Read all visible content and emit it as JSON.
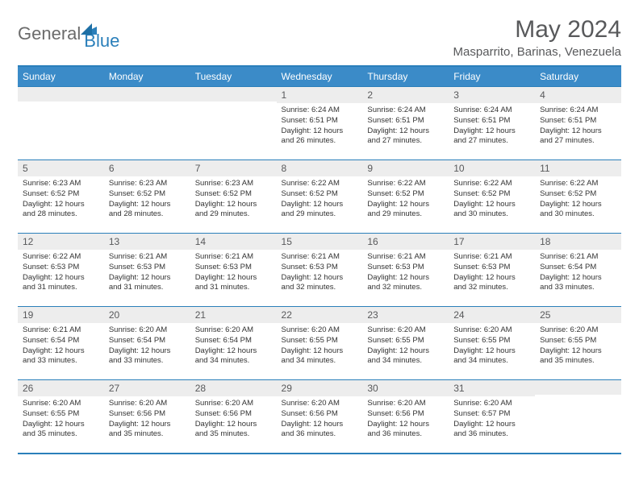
{
  "brand": {
    "text1": "General",
    "text2": "Blue",
    "text1_color": "#6b6b6b",
    "text2_color": "#2a7fba",
    "icon_color": "#2a7fba"
  },
  "title": "May 2024",
  "location": "Masparrito, Barinas, Venezuela",
  "colors": {
    "header_bg": "#3b8bc8",
    "header_text": "#ffffff",
    "daynum_bg": "#ededed",
    "daynum_text": "#58595b",
    "border": "#2a7fba",
    "title_text": "#58595b",
    "body_text": "#333333",
    "page_bg": "#ffffff"
  },
  "weekdays": [
    "Sunday",
    "Monday",
    "Tuesday",
    "Wednesday",
    "Thursday",
    "Friday",
    "Saturday"
  ],
  "weeks": [
    [
      {
        "day": "",
        "lines": []
      },
      {
        "day": "",
        "lines": []
      },
      {
        "day": "",
        "lines": []
      },
      {
        "day": "1",
        "lines": [
          "Sunrise: 6:24 AM",
          "Sunset: 6:51 PM",
          "Daylight: 12 hours",
          "and 26 minutes."
        ]
      },
      {
        "day": "2",
        "lines": [
          "Sunrise: 6:24 AM",
          "Sunset: 6:51 PM",
          "Daylight: 12 hours",
          "and 27 minutes."
        ]
      },
      {
        "day": "3",
        "lines": [
          "Sunrise: 6:24 AM",
          "Sunset: 6:51 PM",
          "Daylight: 12 hours",
          "and 27 minutes."
        ]
      },
      {
        "day": "4",
        "lines": [
          "Sunrise: 6:24 AM",
          "Sunset: 6:51 PM",
          "Daylight: 12 hours",
          "and 27 minutes."
        ]
      }
    ],
    [
      {
        "day": "5",
        "lines": [
          "Sunrise: 6:23 AM",
          "Sunset: 6:52 PM",
          "Daylight: 12 hours",
          "and 28 minutes."
        ]
      },
      {
        "day": "6",
        "lines": [
          "Sunrise: 6:23 AM",
          "Sunset: 6:52 PM",
          "Daylight: 12 hours",
          "and 28 minutes."
        ]
      },
      {
        "day": "7",
        "lines": [
          "Sunrise: 6:23 AM",
          "Sunset: 6:52 PM",
          "Daylight: 12 hours",
          "and 29 minutes."
        ]
      },
      {
        "day": "8",
        "lines": [
          "Sunrise: 6:22 AM",
          "Sunset: 6:52 PM",
          "Daylight: 12 hours",
          "and 29 minutes."
        ]
      },
      {
        "day": "9",
        "lines": [
          "Sunrise: 6:22 AM",
          "Sunset: 6:52 PM",
          "Daylight: 12 hours",
          "and 29 minutes."
        ]
      },
      {
        "day": "10",
        "lines": [
          "Sunrise: 6:22 AM",
          "Sunset: 6:52 PM",
          "Daylight: 12 hours",
          "and 30 minutes."
        ]
      },
      {
        "day": "11",
        "lines": [
          "Sunrise: 6:22 AM",
          "Sunset: 6:52 PM",
          "Daylight: 12 hours",
          "and 30 minutes."
        ]
      }
    ],
    [
      {
        "day": "12",
        "lines": [
          "Sunrise: 6:22 AM",
          "Sunset: 6:53 PM",
          "Daylight: 12 hours",
          "and 31 minutes."
        ]
      },
      {
        "day": "13",
        "lines": [
          "Sunrise: 6:21 AM",
          "Sunset: 6:53 PM",
          "Daylight: 12 hours",
          "and 31 minutes."
        ]
      },
      {
        "day": "14",
        "lines": [
          "Sunrise: 6:21 AM",
          "Sunset: 6:53 PM",
          "Daylight: 12 hours",
          "and 31 minutes."
        ]
      },
      {
        "day": "15",
        "lines": [
          "Sunrise: 6:21 AM",
          "Sunset: 6:53 PM",
          "Daylight: 12 hours",
          "and 32 minutes."
        ]
      },
      {
        "day": "16",
        "lines": [
          "Sunrise: 6:21 AM",
          "Sunset: 6:53 PM",
          "Daylight: 12 hours",
          "and 32 minutes."
        ]
      },
      {
        "day": "17",
        "lines": [
          "Sunrise: 6:21 AM",
          "Sunset: 6:53 PM",
          "Daylight: 12 hours",
          "and 32 minutes."
        ]
      },
      {
        "day": "18",
        "lines": [
          "Sunrise: 6:21 AM",
          "Sunset: 6:54 PM",
          "Daylight: 12 hours",
          "and 33 minutes."
        ]
      }
    ],
    [
      {
        "day": "19",
        "lines": [
          "Sunrise: 6:21 AM",
          "Sunset: 6:54 PM",
          "Daylight: 12 hours",
          "and 33 minutes."
        ]
      },
      {
        "day": "20",
        "lines": [
          "Sunrise: 6:20 AM",
          "Sunset: 6:54 PM",
          "Daylight: 12 hours",
          "and 33 minutes."
        ]
      },
      {
        "day": "21",
        "lines": [
          "Sunrise: 6:20 AM",
          "Sunset: 6:54 PM",
          "Daylight: 12 hours",
          "and 34 minutes."
        ]
      },
      {
        "day": "22",
        "lines": [
          "Sunrise: 6:20 AM",
          "Sunset: 6:55 PM",
          "Daylight: 12 hours",
          "and 34 minutes."
        ]
      },
      {
        "day": "23",
        "lines": [
          "Sunrise: 6:20 AM",
          "Sunset: 6:55 PM",
          "Daylight: 12 hours",
          "and 34 minutes."
        ]
      },
      {
        "day": "24",
        "lines": [
          "Sunrise: 6:20 AM",
          "Sunset: 6:55 PM",
          "Daylight: 12 hours",
          "and 34 minutes."
        ]
      },
      {
        "day": "25",
        "lines": [
          "Sunrise: 6:20 AM",
          "Sunset: 6:55 PM",
          "Daylight: 12 hours",
          "and 35 minutes."
        ]
      }
    ],
    [
      {
        "day": "26",
        "lines": [
          "Sunrise: 6:20 AM",
          "Sunset: 6:55 PM",
          "Daylight: 12 hours",
          "and 35 minutes."
        ]
      },
      {
        "day": "27",
        "lines": [
          "Sunrise: 6:20 AM",
          "Sunset: 6:56 PM",
          "Daylight: 12 hours",
          "and 35 minutes."
        ]
      },
      {
        "day": "28",
        "lines": [
          "Sunrise: 6:20 AM",
          "Sunset: 6:56 PM",
          "Daylight: 12 hours",
          "and 35 minutes."
        ]
      },
      {
        "day": "29",
        "lines": [
          "Sunrise: 6:20 AM",
          "Sunset: 6:56 PM",
          "Daylight: 12 hours",
          "and 36 minutes."
        ]
      },
      {
        "day": "30",
        "lines": [
          "Sunrise: 6:20 AM",
          "Sunset: 6:56 PM",
          "Daylight: 12 hours",
          "and 36 minutes."
        ]
      },
      {
        "day": "31",
        "lines": [
          "Sunrise: 6:20 AM",
          "Sunset: 6:57 PM",
          "Daylight: 12 hours",
          "and 36 minutes."
        ]
      },
      {
        "day": "",
        "lines": []
      }
    ]
  ]
}
